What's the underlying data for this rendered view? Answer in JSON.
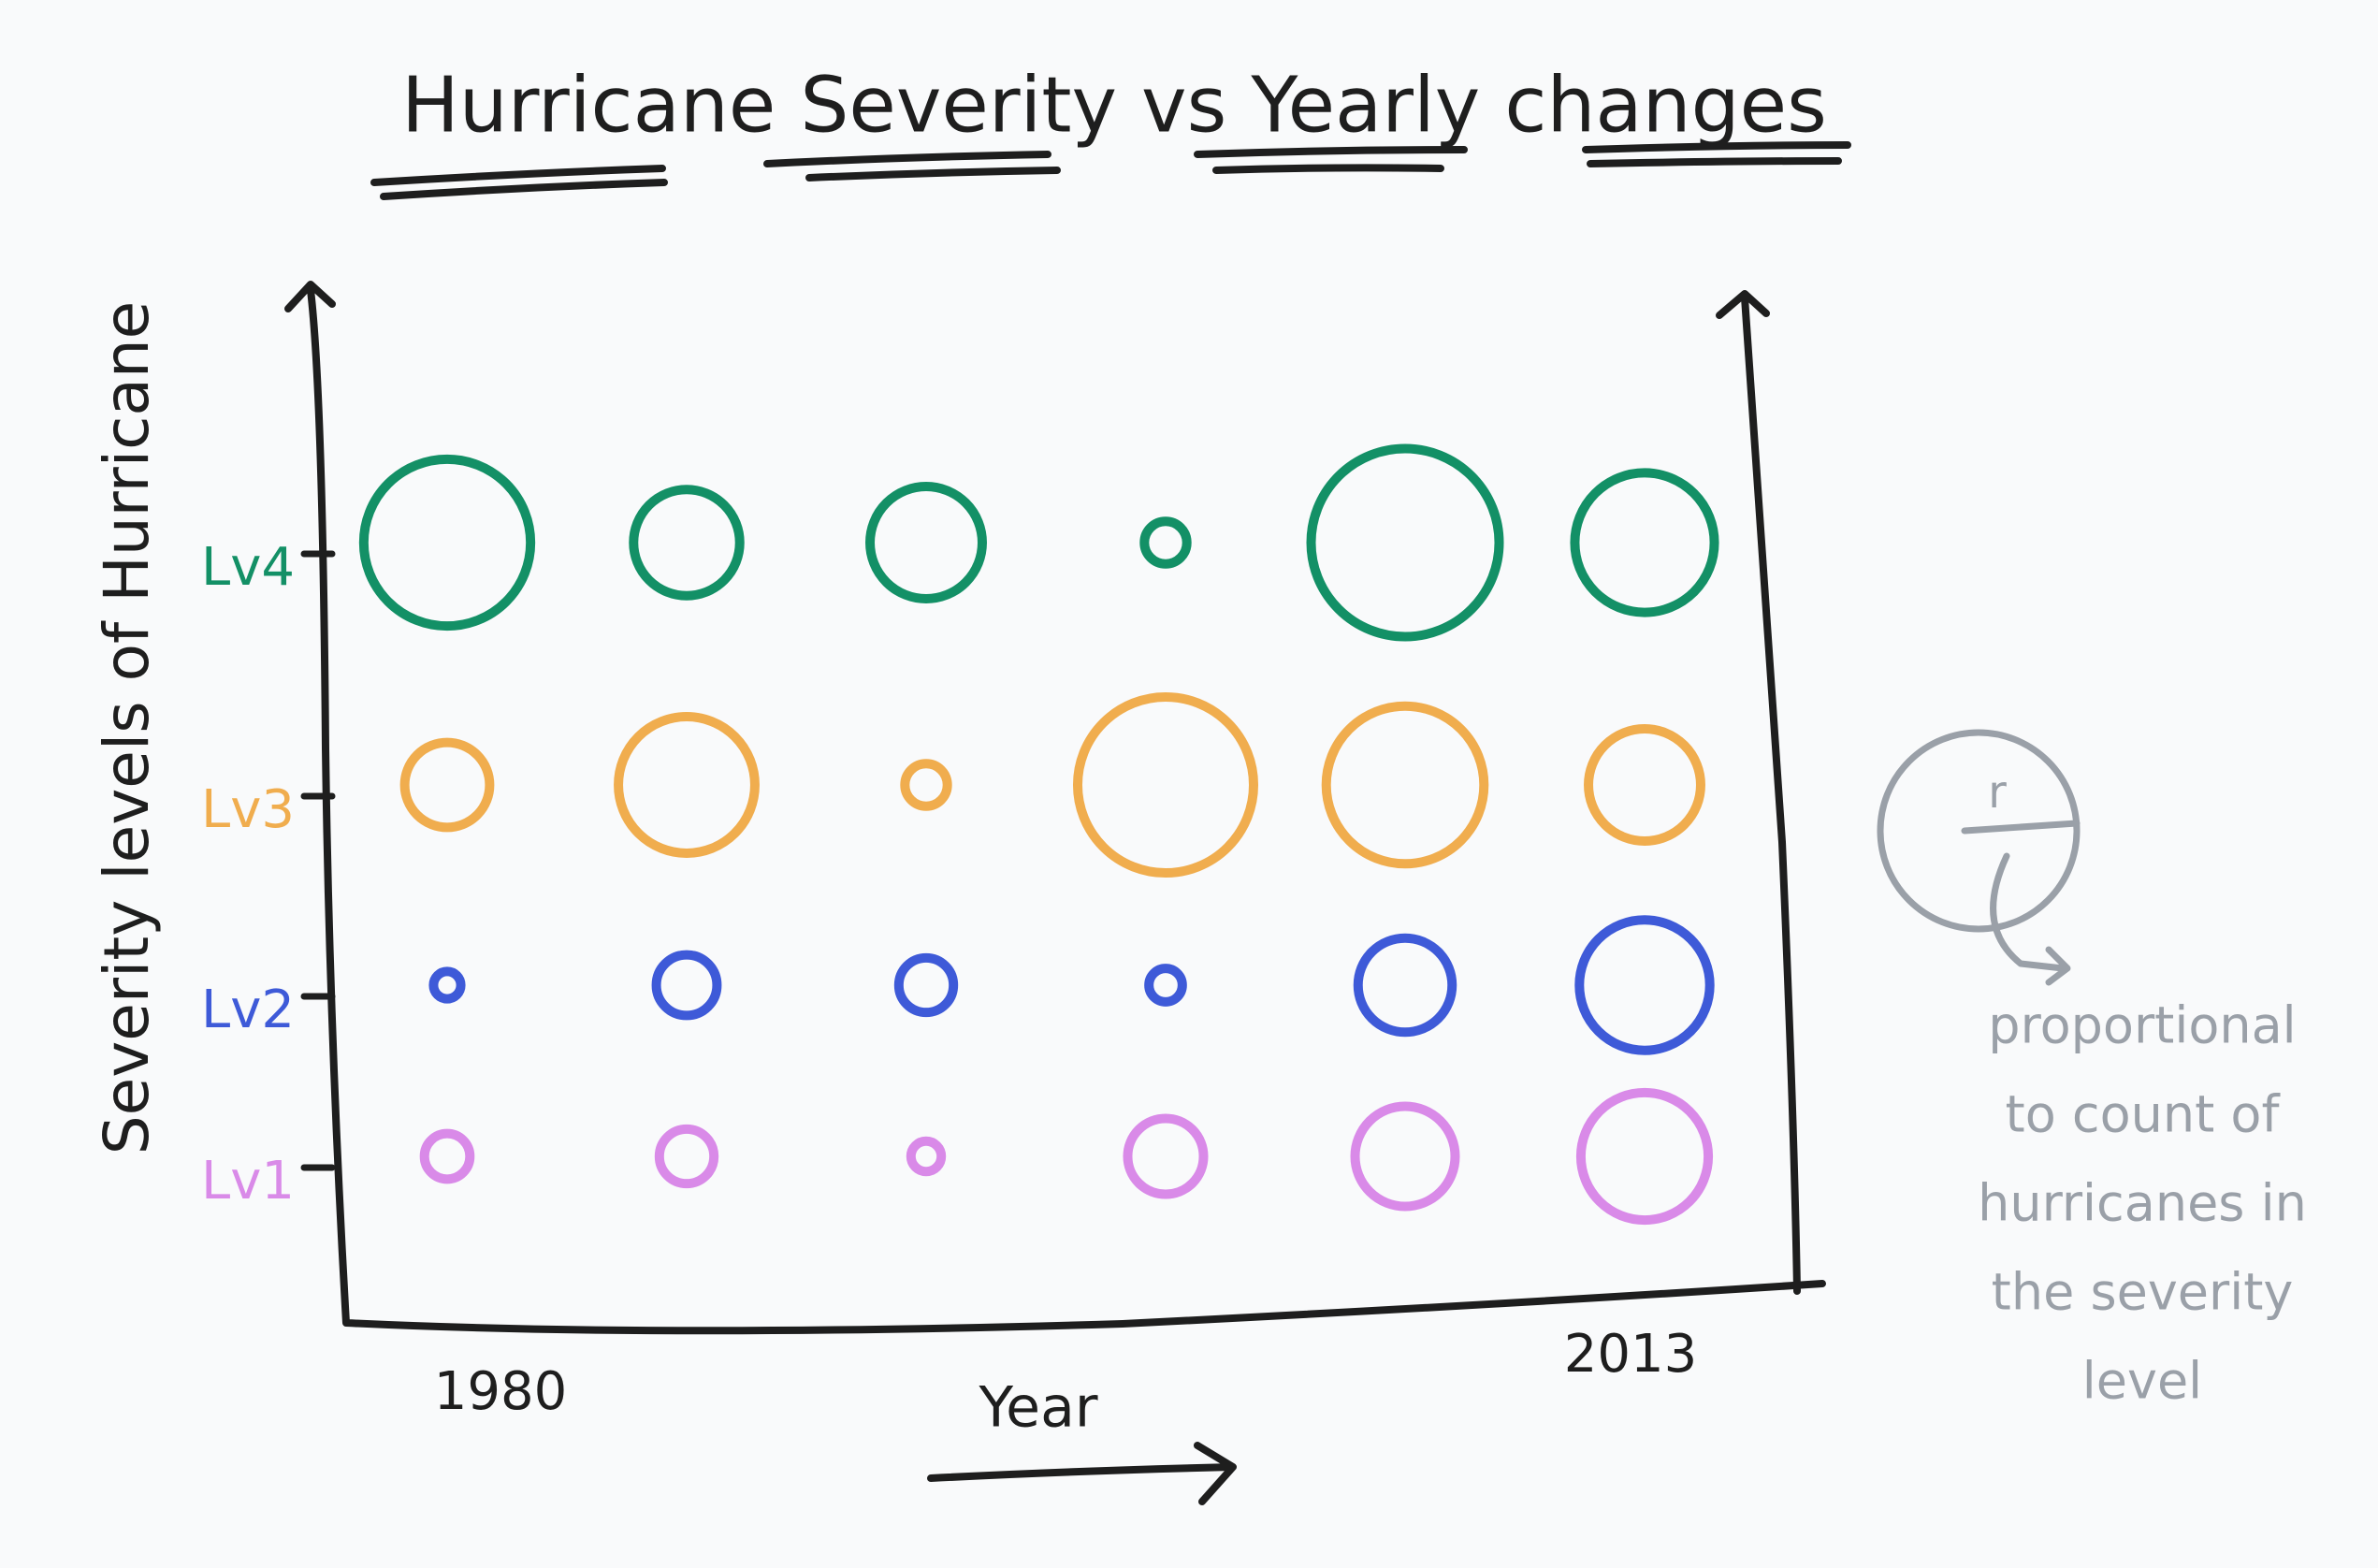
{
  "chart_data": {
    "type": "bubble",
    "title": "Hurricane Severity vs Yearly changes",
    "x_label": "Year",
    "y_label": "Severity levels of Hurricane",
    "categories": [
      "1980",
      null,
      null,
      null,
      null,
      "2013"
    ],
    "series": [
      {
        "name": "Lv1",
        "color": "#d98ae8",
        "values": [
          15,
          18,
          10,
          25,
          33,
          42
        ]
      },
      {
        "name": "Lv2",
        "color": "#3e5ad8",
        "values": [
          9,
          20,
          18,
          11,
          31,
          43
        ]
      },
      {
        "name": "Lv3",
        "color": "#f0ad4e",
        "values": [
          28,
          45,
          14,
          58,
          52,
          37
        ]
      },
      {
        "name": "Lv4",
        "color": "#139066",
        "values": [
          55,
          35,
          37,
          14,
          62,
          46
        ]
      }
    ],
    "legend": {
      "symbol": "r",
      "color": "#9aa0a8",
      "lines": [
        "proportional",
        "to count of",
        "hurricanes in",
        "the severity",
        "level"
      ]
    }
  }
}
